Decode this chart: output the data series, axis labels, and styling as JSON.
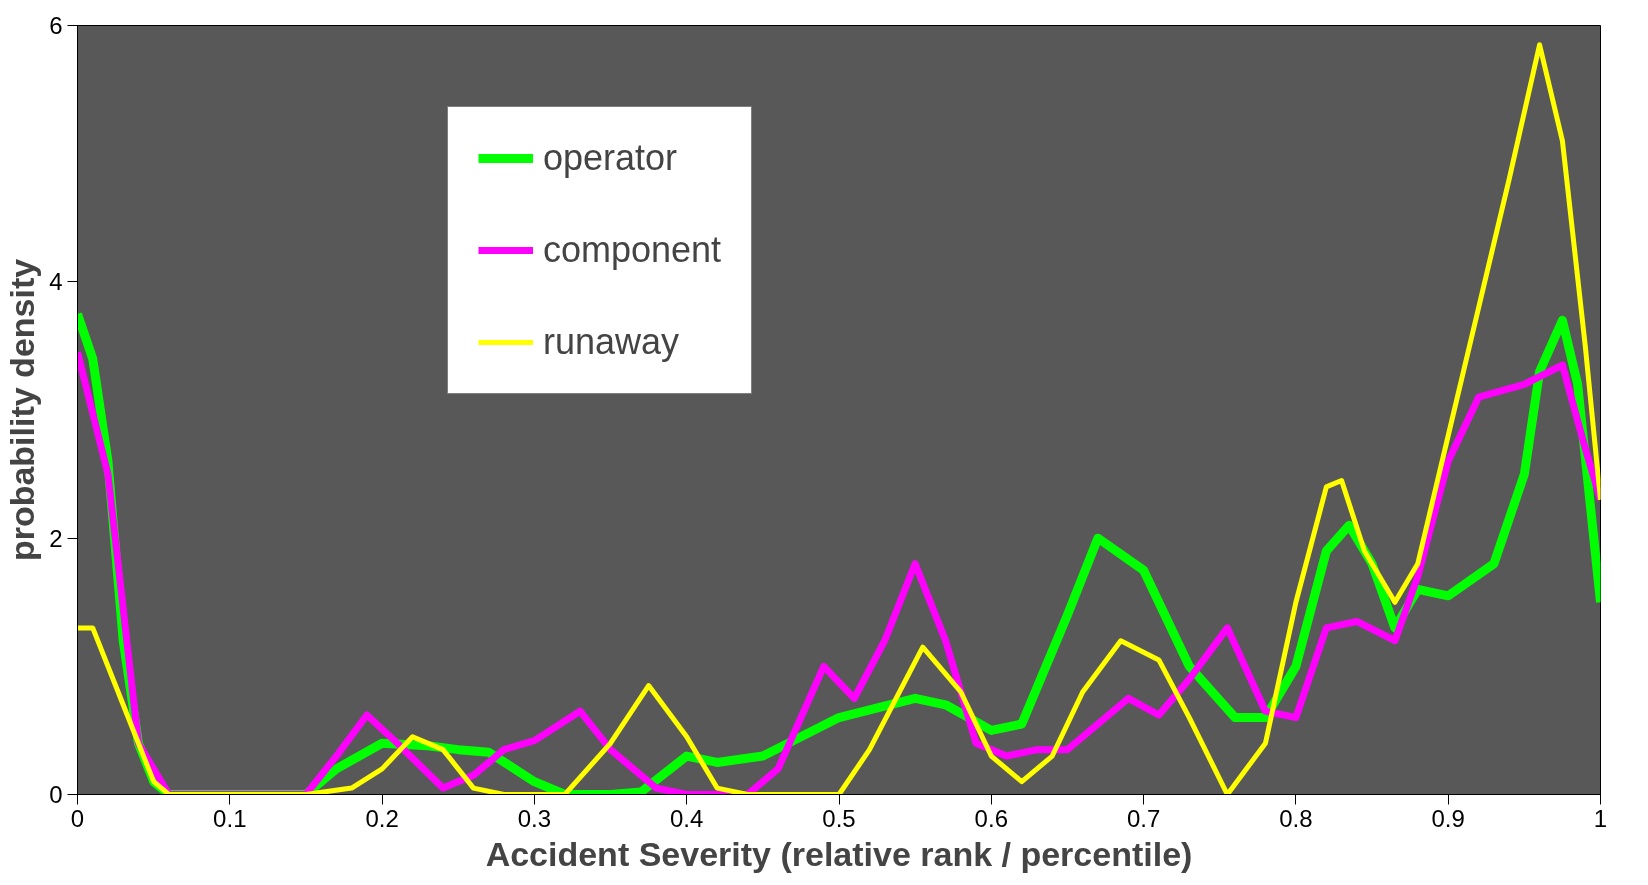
{
  "chart_data": {
    "type": "line",
    "xlabel": "Accident Severity (relative rank / percentile)",
    "ylabel": "probability density",
    "xlim": [
      0,
      1
    ],
    "ylim": [
      0,
      6
    ],
    "xticks": [
      0,
      0.1,
      0.2,
      0.3,
      0.4,
      0.5,
      0.6,
      0.7,
      0.8,
      0.9,
      1
    ],
    "yticks": [
      0,
      2,
      4,
      6
    ],
    "grid": false,
    "legend": "top",
    "marker": "none",
    "line_style": "solid",
    "series": [
      {
        "name": "operator",
        "color": "#00ff00",
        "x": [
          0,
          0.01,
          0.02,
          0.03,
          0.04,
          0.05,
          0.06,
          0.1,
          0.15,
          0.17,
          0.2,
          0.23,
          0.25,
          0.27,
          0.3,
          0.32,
          0.35,
          0.37,
          0.4,
          0.42,
          0.45,
          0.5,
          0.55,
          0.57,
          0.6,
          0.62,
          0.65,
          0.67,
          0.7,
          0.73,
          0.76,
          0.78,
          0.8,
          0.82,
          0.835,
          0.85,
          0.865,
          0.87,
          0.88,
          0.9,
          0.93,
          0.95,
          0.96,
          0.975,
          0.985,
          1.0
        ],
        "values": [
          3.75,
          3.4,
          2.6,
          1.2,
          0.4,
          0.1,
          0,
          0,
          0,
          0.2,
          0.4,
          0.38,
          0.35,
          0.33,
          0.1,
          0,
          0,
          0.02,
          0.3,
          0.25,
          0.3,
          0.6,
          0.75,
          0.7,
          0.5,
          0.55,
          1.4,
          2.0,
          1.75,
          1.0,
          0.6,
          0.6,
          1.0,
          1.9,
          2.1,
          1.8,
          1.3,
          1.4,
          1.6,
          1.55,
          1.8,
          2.5,
          3.3,
          3.7,
          3.2,
          1.5
        ]
      },
      {
        "name": "component",
        "color": "#ff00ff",
        "x": [
          0,
          0.02,
          0.04,
          0.06,
          0.15,
          0.17,
          0.19,
          0.21,
          0.24,
          0.26,
          0.28,
          0.3,
          0.33,
          0.35,
          0.38,
          0.4,
          0.44,
          0.46,
          0.49,
          0.51,
          0.53,
          0.55,
          0.57,
          0.59,
          0.61,
          0.63,
          0.65,
          0.69,
          0.71,
          0.73,
          0.755,
          0.78,
          0.8,
          0.82,
          0.84,
          0.865,
          0.88,
          0.9,
          0.92,
          0.95,
          0.975,
          0.99,
          1.0
        ],
        "values": [
          3.45,
          2.5,
          0.4,
          0,
          0,
          0.3,
          0.62,
          0.4,
          0.05,
          0.15,
          0.35,
          0.42,
          0.65,
          0.35,
          0.05,
          0,
          0,
          0.2,
          1.0,
          0.75,
          1.2,
          1.8,
          1.2,
          0.4,
          0.3,
          0.35,
          0.35,
          0.75,
          0.62,
          0.9,
          1.3,
          0.65,
          0.6,
          1.3,
          1.35,
          1.2,
          1.7,
          2.6,
          3.1,
          3.2,
          3.35,
          2.7,
          2.3
        ]
      },
      {
        "name": "runaway",
        "color": "#ffff00",
        "x": [
          0,
          0.01,
          0.03,
          0.05,
          0.06,
          0.15,
          0.18,
          0.2,
          0.22,
          0.24,
          0.26,
          0.28,
          0.32,
          0.35,
          0.375,
          0.4,
          0.42,
          0.44,
          0.5,
          0.52,
          0.555,
          0.58,
          0.6,
          0.62,
          0.64,
          0.66,
          0.685,
          0.71,
          0.73,
          0.755,
          0.78,
          0.8,
          0.82,
          0.83,
          0.845,
          0.865,
          0.88,
          0.9,
          0.92,
          0.94,
          0.96,
          0.975,
          0.99,
          1.0
        ],
        "values": [
          1.3,
          1.3,
          0.7,
          0.1,
          0,
          0,
          0.05,
          0.2,
          0.45,
          0.35,
          0.05,
          0,
          0,
          0.4,
          0.85,
          0.45,
          0.05,
          0,
          0,
          0.35,
          1.15,
          0.8,
          0.3,
          0.1,
          0.3,
          0.8,
          1.2,
          1.05,
          0.6,
          0,
          0.4,
          1.5,
          2.4,
          2.45,
          1.9,
          1.5,
          1.8,
          2.8,
          3.8,
          4.8,
          5.85,
          5.1,
          3.5,
          2.3
        ]
      }
    ]
  }
}
